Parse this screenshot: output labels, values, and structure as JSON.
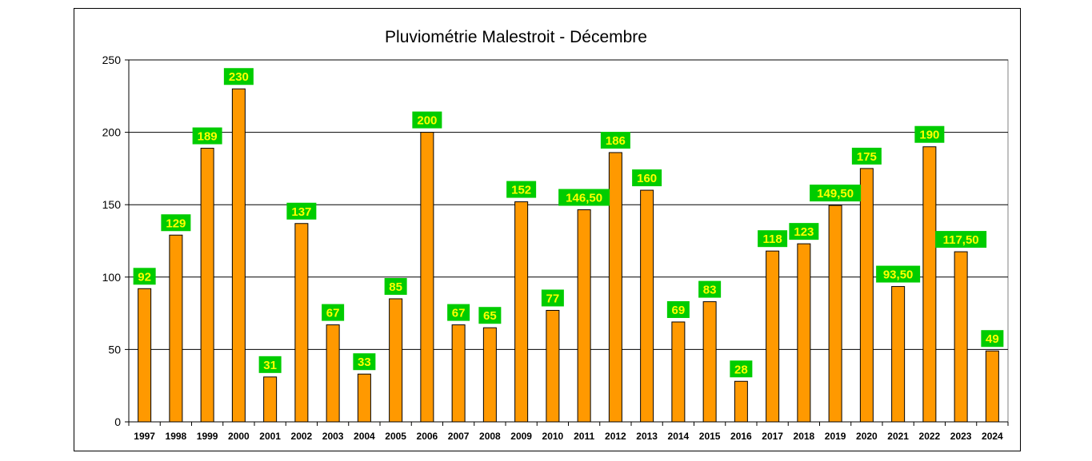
{
  "chart_data": {
    "type": "bar",
    "title": "Pluviométrie Malestroit - Décembre",
    "xlabel": "",
    "ylabel": "",
    "ylim": [
      0,
      250
    ],
    "yticks": [
      0,
      50,
      100,
      150,
      200,
      250
    ],
    "grid": true,
    "legend": "none",
    "bar_color": "#ff9900",
    "label_bg_color": "#00cc00",
    "label_text_color": "#ffff00",
    "categories": [
      "1997",
      "1998",
      "1999",
      "2000",
      "2001",
      "2002",
      "2003",
      "2004",
      "2005",
      "2006",
      "2007",
      "2008",
      "2009",
      "2010",
      "2011",
      "2012",
      "2013",
      "2014",
      "2015",
      "2016",
      "2017",
      "2018",
      "2019",
      "2020",
      "2021",
      "2022",
      "2023",
      "2024"
    ],
    "values": [
      92,
      129,
      189,
      230,
      31,
      137,
      67,
      33,
      85,
      200,
      67,
      65,
      152,
      77,
      146.5,
      186,
      160,
      69,
      83,
      28,
      118,
      123,
      149.5,
      175,
      93.5,
      190,
      117.5,
      49
    ],
    "data_labels": [
      "92",
      "129",
      "189",
      "230",
      "31",
      "137",
      "67",
      "33",
      "85",
      "200",
      "67",
      "65",
      "152",
      "77",
      "146,50",
      "186",
      "160",
      "69",
      "83",
      "28",
      "118",
      "123",
      "149,50",
      "175",
      "93,50",
      "190",
      "117,50",
      "49"
    ]
  }
}
